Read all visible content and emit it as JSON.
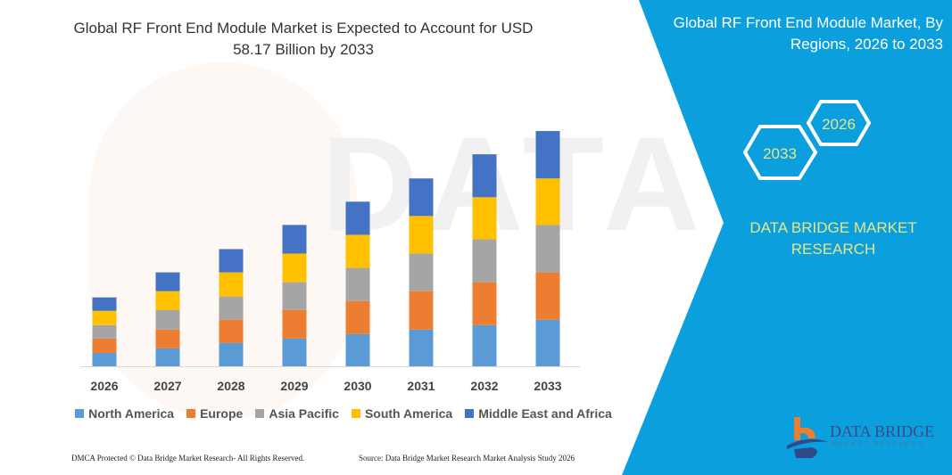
{
  "title": "Global RF Front End Module Market is Expected to Account for USD 58.17 Billion by 2033",
  "panel": {
    "title": "Global RF Front End Module Market, By Regions, 2026 to 2033",
    "hex_years": [
      "2033",
      "2026"
    ],
    "brand": "DATA BRIDGE MARKET RESEARCH",
    "logo_text": "DATA BRIDGE",
    "logo_sub": "MARKET RESEARCH"
  },
  "footer": {
    "left": "DMCA Protected © Data Bridge Market Research- All Rights Reserved.",
    "right": "Source: Data Bridge Market Research Market Analysis Study 2026"
  },
  "colors": {
    "accent": "#0ba0dd",
    "brand_text": "#e7e58a"
  },
  "chart_data": {
    "type": "bar",
    "stacked": true,
    "categories": [
      "2026",
      "2027",
      "2028",
      "2029",
      "2030",
      "2031",
      "2032",
      "2033"
    ],
    "series": [
      {
        "name": "North America",
        "color": "#5b9bd5",
        "values": [
          15,
          20,
          26,
          31,
          36,
          41,
          46,
          52
        ]
      },
      {
        "name": "Europe",
        "color": "#ed7d31",
        "values": [
          16,
          21,
          26,
          32,
          37,
          43,
          48,
          53
        ]
      },
      {
        "name": "Asia Pacific",
        "color": "#a5a5a5",
        "values": [
          15,
          22,
          26,
          31,
          37,
          42,
          48,
          53
        ]
      },
      {
        "name": "South America",
        "color": "#ffc000",
        "values": [
          16,
          21,
          27,
          32,
          37,
          42,
          47,
          52
        ]
      },
      {
        "name": "Middle East and Africa",
        "color": "#4472c4",
        "values": [
          15,
          21,
          26,
          32,
          37,
          42,
          48,
          53
        ]
      }
    ],
    "ylim": [
      0,
      270
    ],
    "y_axis_shown": false,
    "grid": false,
    "legend": "bottom"
  }
}
